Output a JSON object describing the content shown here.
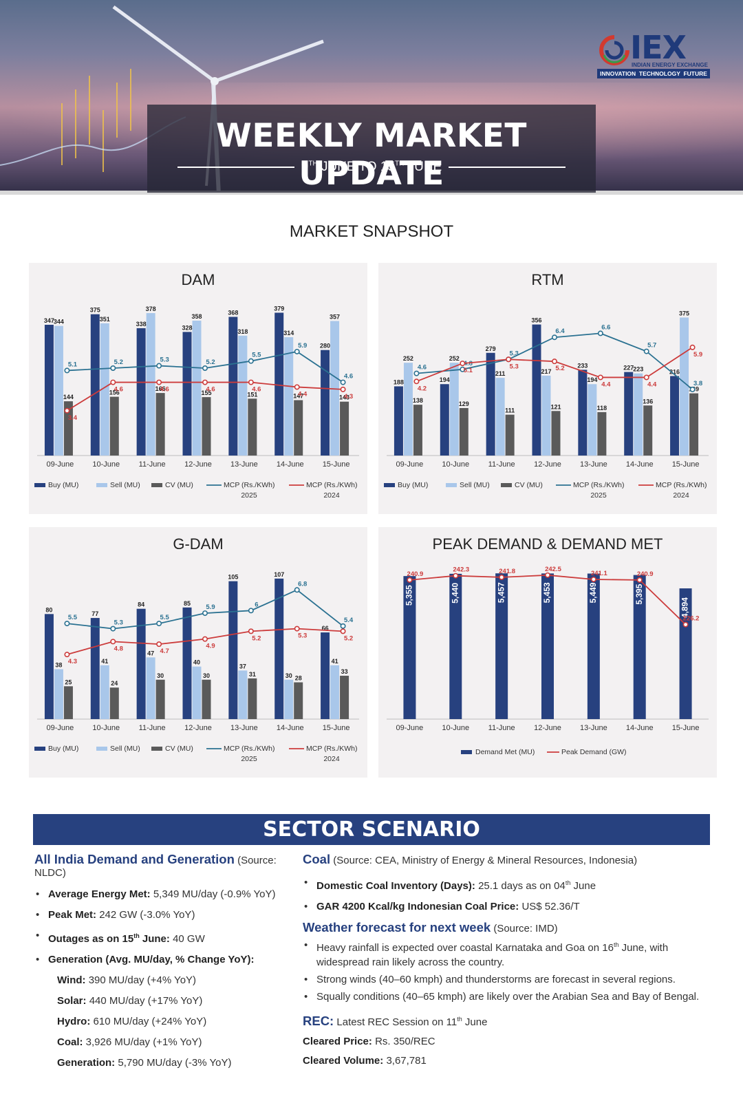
{
  "header": {
    "title": "WEEKLY MARKET UPDATE",
    "date_from_day": "9",
    "date_from_sup": "TH",
    "date_mid": " JUNE TO 15",
    "date_to_sup": "TH",
    "date_end": " JUNE",
    "logo_text": "IEX",
    "logo_subtitle": "INDIAN ENERGY EXCHANGE",
    "logo_tagline": "INNOVATION  TECHNOLOGY  FUTURE"
  },
  "snapshot_title": "MARKET SNAPSHOT",
  "chart_data": [
    {
      "type": "bar",
      "title": "DAM",
      "categories": [
        "09-June",
        "10-June",
        "11-June",
        "12-June",
        "13-June",
        "14-June",
        "15-June"
      ],
      "series": [
        {
          "name": "Buy (MU)",
          "kind": "bar",
          "color": "#27417f",
          "values": [
            347,
            375,
            338,
            328,
            368,
            379,
            280
          ]
        },
        {
          "name": "Sell (MU)",
          "kind": "bar",
          "color": "#a9c7ea",
          "values": [
            344,
            351,
            378,
            358,
            318,
            314,
            357
          ]
        },
        {
          "name": "CV (MU)",
          "kind": "bar",
          "color": "#5a5a5a",
          "values": [
            144,
            156,
            166,
            155,
            151,
            147,
            143
          ]
        },
        {
          "name": "MCP (Rs./KWh) 2025",
          "kind": "line",
          "color": "#2a7191",
          "values": [
            5.1,
            5.2,
            5.3,
            5.2,
            5.5,
            5.9,
            4.6
          ]
        },
        {
          "name": "MCP (Rs./KWh) 2024",
          "kind": "line",
          "color": "#cc3b3b",
          "values": [
            3.4,
            4.6,
            4.6,
            4.6,
            4.6,
            4.4,
            4.3
          ]
        }
      ],
      "legend": [
        {
          "label": "Buy (MU)",
          "sub": "",
          "color": "#27417f",
          "shape": "bar"
        },
        {
          "label": "Sell (MU)",
          "sub": "",
          "color": "#a9c7ea",
          "shape": "bar"
        },
        {
          "label": "CV (MU)",
          "sub": "",
          "color": "#5a5a5a",
          "shape": "bar"
        },
        {
          "label": "MCP (Rs./KWh)",
          "sub": "2025",
          "color": "#2a7191",
          "shape": "line"
        },
        {
          "label": "MCP (Rs./KWh)",
          "sub": "2024",
          "color": "#cc3b3b",
          "shape": "line"
        }
      ],
      "legend_position": "bottom"
    },
    {
      "type": "bar",
      "title": "RTM",
      "categories": [
        "09-June",
        "10-June",
        "11-June",
        "12-June",
        "13-June",
        "14-June",
        "15-June"
      ],
      "series": [
        {
          "name": "Buy (MU)",
          "kind": "bar",
          "color": "#27417f",
          "values": [
            188,
            194,
            279,
            356,
            233,
            227,
            216
          ]
        },
        {
          "name": "Sell (MU)",
          "kind": "bar",
          "color": "#a9c7ea",
          "values": [
            252,
            252,
            211,
            217,
            194,
            223,
            375
          ]
        },
        {
          "name": "CV (MU)",
          "kind": "bar",
          "color": "#5a5a5a",
          "values": [
            138,
            129,
            111,
            121,
            118,
            136,
            169
          ]
        },
        {
          "name": "MCP (Rs./KWh) 2025",
          "kind": "line",
          "color": "#2a7191",
          "values": [
            4.6,
            4.8,
            5.3,
            6.4,
            6.6,
            5.7,
            3.8
          ]
        },
        {
          "name": "MCP (Rs./KWh) 2024",
          "kind": "line",
          "color": "#cc3b3b",
          "values": [
            4.2,
            5.1,
            5.3,
            5.2,
            4.4,
            4.4,
            5.9
          ]
        }
      ],
      "legend": [
        {
          "label": "Buy (MU)",
          "sub": "",
          "color": "#27417f",
          "shape": "bar"
        },
        {
          "label": "Sell (MU)",
          "sub": "",
          "color": "#a9c7ea",
          "shape": "bar"
        },
        {
          "label": "CV (MU)",
          "sub": "",
          "color": "#5a5a5a",
          "shape": "bar"
        },
        {
          "label": "MCP (Rs./KWh)",
          "sub": "2025",
          "color": "#2a7191",
          "shape": "line"
        },
        {
          "label": "MCP (Rs./KWh)",
          "sub": "2024",
          "color": "#cc3b3b",
          "shape": "line"
        }
      ],
      "legend_position": "bottom"
    },
    {
      "type": "bar",
      "title": "G-DAM",
      "categories": [
        "09-June",
        "10-June",
        "11-June",
        "12-June",
        "13-June",
        "14-June",
        "15-June"
      ],
      "series": [
        {
          "name": "Buy (MU)",
          "kind": "bar",
          "color": "#27417f",
          "values": [
            80,
            77,
            84,
            85,
            105,
            107,
            66
          ]
        },
        {
          "name": "Sell (MU)",
          "kind": "bar",
          "color": "#a9c7ea",
          "values": [
            38,
            41,
            47,
            40,
            37,
            30,
            41
          ]
        },
        {
          "name": "CV (MU)",
          "kind": "bar",
          "color": "#5a5a5a",
          "values": [
            25,
            24,
            30,
            30,
            31,
            28,
            33
          ]
        },
        {
          "name": "MCP (Rs./KWh) 2025",
          "kind": "line",
          "color": "#2a7191",
          "values": [
            5.5,
            5.3,
            5.5,
            5.9,
            6.0,
            6.8,
            5.4
          ]
        },
        {
          "name": "MCP (Rs./KWh) 2024",
          "kind": "line",
          "color": "#cc3b3b",
          "values": [
            4.3,
            4.8,
            4.7,
            4.9,
            5.2,
            5.3,
            5.2
          ]
        }
      ],
      "legend": [
        {
          "label": "Buy (MU)",
          "sub": "",
          "color": "#27417f",
          "shape": "bar"
        },
        {
          "label": "Sell (MU)",
          "sub": "",
          "color": "#a9c7ea",
          "shape": "bar"
        },
        {
          "label": "CV (MU)",
          "sub": "",
          "color": "#5a5a5a",
          "shape": "bar"
        },
        {
          "label": "MCP (Rs./KWh)",
          "sub": "2025",
          "color": "#2a7191",
          "shape": "line"
        },
        {
          "label": "MCP (Rs./KWh)",
          "sub": "2024",
          "color": "#cc3b3b",
          "shape": "line"
        }
      ],
      "legend_position": "bottom"
    },
    {
      "type": "bar",
      "title": "PEAK DEMAND & DEMAND MET",
      "categories": [
        "09-June",
        "10-June",
        "11-June",
        "12-June",
        "13-June",
        "14-June",
        "15-June"
      ],
      "series": [
        {
          "name": "Demand Met (MU)",
          "kind": "bar",
          "color": "#27417f",
          "values": [
            5355,
            5440,
            5457,
            5453,
            5449,
            5395,
            4894
          ],
          "labels": [
            "5,355",
            "5,440",
            "5,457",
            "5,453",
            "5,449",
            "5,395",
            "4,894"
          ]
        },
        {
          "name": "Peak Demand (GW)",
          "kind": "line",
          "color": "#cc3b3b",
          "values": [
            240.9,
            242.3,
            241.8,
            242.5,
            241.1,
            240.9,
            226.2
          ]
        }
      ],
      "legend": [
        {
          "label": "Demand Met (MU)",
          "sub": "",
          "color": "#27417f",
          "shape": "bar"
        },
        {
          "label": "Peak Demand (GW)",
          "sub": "",
          "color": "#cc3b3b",
          "shape": "line"
        }
      ],
      "legend_position": "bottom"
    }
  ],
  "sector": {
    "title": "SECTOR SCENARIO",
    "demand": {
      "heading": "All India Demand and Generation",
      "source": "(Source: NLDC)",
      "items": [
        {
          "label": "Average Energy Met:",
          "value": "5,349 MU/day (-0.9% YoY)"
        },
        {
          "label": "Peak Met:",
          "value": "242 GW (-3.0% YoY)"
        },
        {
          "label_pre": "Outages as on 15",
          "label_sup": "th",
          "label_post": " June:",
          "value": "40 GW"
        },
        {
          "label": "Generation (Avg. MU/day, % Change YoY):",
          "value": ""
        }
      ],
      "generation": [
        {
          "label": "Wind:",
          "value": "390 MU/day (+4% YoY)"
        },
        {
          "label": "Solar:",
          "value": "440 MU/day (+17% YoY)"
        },
        {
          "label": "Hydro:",
          "value": "610 MU/day (+24% YoY)"
        },
        {
          "label": "Coal:",
          "value": "3,926 MU/day (+1% YoY)"
        },
        {
          "label": "Generation:",
          "value": "5,790 MU/day (-3% YoY)"
        }
      ]
    },
    "coal": {
      "heading": "Coal",
      "source": "(Source: CEA, Ministry of Energy & Mineral Resources, Indonesia)",
      "item1_label": "Domestic Coal Inventory (Days):",
      "item1_value_pre": "25.1 days as on 04",
      "item1_value_sup": "th",
      "item1_value_post": " June",
      "item2_label": "GAR 4200 Kcal/kg Indonesian Coal Price:",
      "item2_value": "US$ 52.36/T"
    },
    "weather": {
      "heading": "Weather forecast for next week",
      "source": "(Source: IMD)",
      "item1_pre": "Heavy rainfall is expected over coastal Karnataka and Goa on 16",
      "item1_sup": "th",
      "item1_post": " June, with widespread rain likely across the country.",
      "item2": "Strong winds (40–60 kmph) and thunderstorms are forecast in several regions.",
      "item3": "Squally conditions (40–65 kmph) are likely over the Arabian Sea and Bay of Bengal."
    },
    "rec": {
      "heading": "REC:",
      "text_pre": "Latest REC Session on 11",
      "text_sup": "th",
      "text_post": " June",
      "price_label": "Cleared Price:",
      "price_value": "Rs. 350/REC",
      "volume_label": "Cleared Volume:",
      "volume_value": "3,67,781"
    }
  }
}
